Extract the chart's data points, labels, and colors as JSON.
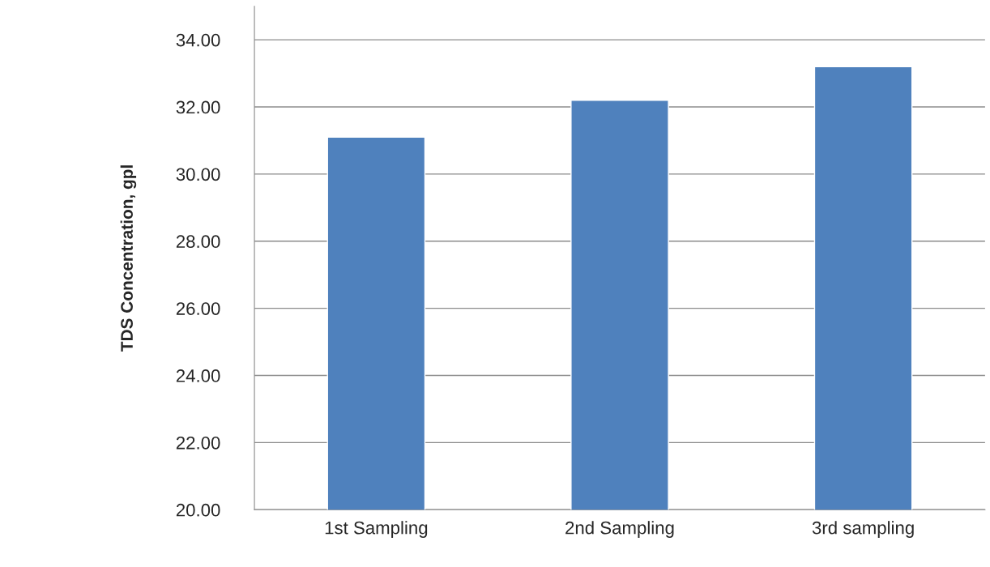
{
  "chart_data": {
    "type": "bar",
    "ylabel": "TDS Concentration, gpl",
    "categories": [
      "1st Sampling",
      "2nd Sampling",
      "3rd sampling"
    ],
    "values": [
      31.1,
      32.2,
      33.2
    ],
    "color": "#4f81bd",
    "ylim": [
      20,
      35
    ],
    "yticks": [
      {
        "value": 20,
        "label": "20.00"
      },
      {
        "value": 22,
        "label": "22.00"
      },
      {
        "value": 24,
        "label": "24.00"
      },
      {
        "value": 26,
        "label": "26.00"
      },
      {
        "value": 28,
        "label": "28.00"
      },
      {
        "value": 30,
        "label": "30.00"
      },
      {
        "value": 32,
        "label": "32.00"
      },
      {
        "value": 34,
        "label": "34.00"
      }
    ],
    "grid": "y",
    "legend": false
  }
}
